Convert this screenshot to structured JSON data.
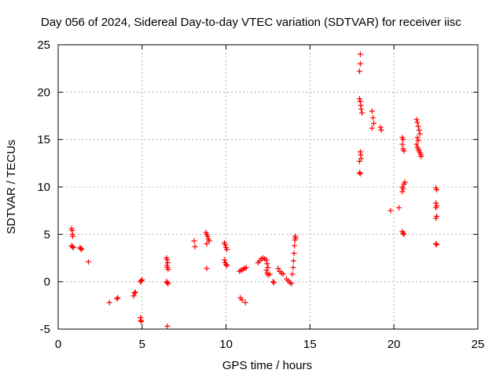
{
  "chart_data": {
    "type": "scatter",
    "title": "Day 056 of 2024, Sidereal Day-to-day VTEC variation (SDTVAR) for receiver iisc",
    "xlabel": "GPS time / hours",
    "ylabel": "SDTVAR / TECUs",
    "xlim": [
      0,
      25
    ],
    "ylim": [
      -5,
      25
    ],
    "xticks": [
      "0",
      "5",
      "10",
      "15",
      "20",
      "25"
    ],
    "yticks": [
      "-5",
      "0",
      "5",
      "10",
      "15",
      "20",
      "25"
    ],
    "grid": true,
    "marker": "+",
    "color": "#ff0000",
    "series": [
      {
        "name": "SDTVAR",
        "points": [
          [
            0.8,
            5.6
          ],
          [
            0.83,
            5.4
          ],
          [
            0.85,
            5.0
          ],
          [
            0.87,
            4.8
          ],
          [
            0.8,
            3.8
          ],
          [
            0.85,
            3.7
          ],
          [
            0.9,
            3.6
          ],
          [
            1.3,
            3.6
          ],
          [
            1.35,
            3.5
          ],
          [
            1.4,
            3.4
          ],
          [
            1.8,
            2.1
          ],
          [
            3.05,
            -2.2
          ],
          [
            3.5,
            -1.8
          ],
          [
            3.55,
            -1.7
          ],
          [
            4.5,
            -1.5
          ],
          [
            4.55,
            -1.2
          ],
          [
            4.6,
            -1.1
          ],
          [
            4.9,
            -3.8
          ],
          [
            4.92,
            -4.1
          ],
          [
            4.95,
            -4.2
          ],
          [
            4.9,
            0.0
          ],
          [
            4.95,
            0.1
          ],
          [
            5.0,
            0.2
          ],
          [
            6.45,
            2.5
          ],
          [
            6.5,
            2.3
          ],
          [
            6.52,
            2.0
          ],
          [
            6.48,
            1.7
          ],
          [
            6.5,
            1.5
          ],
          [
            6.55,
            1.3
          ],
          [
            6.45,
            0.0
          ],
          [
            6.5,
            -0.1
          ],
          [
            6.55,
            -0.2
          ],
          [
            6.5,
            -4.7
          ],
          [
            8.1,
            4.3
          ],
          [
            8.15,
            3.7
          ],
          [
            8.8,
            5.2
          ],
          [
            8.85,
            5.0
          ],
          [
            8.9,
            4.8
          ],
          [
            8.95,
            4.5
          ],
          [
            9.0,
            4.3
          ],
          [
            8.85,
            4.0
          ],
          [
            8.85,
            1.4
          ],
          [
            9.9,
            4.1
          ],
          [
            9.95,
            3.9
          ],
          [
            10.0,
            3.6
          ],
          [
            10.05,
            3.4
          ],
          [
            9.9,
            2.3
          ],
          [
            9.95,
            2.0
          ],
          [
            10.0,
            1.8
          ],
          [
            10.05,
            1.7
          ],
          [
            10.8,
            1.1
          ],
          [
            10.9,
            1.2
          ],
          [
            11.0,
            1.3
          ],
          [
            11.1,
            1.4
          ],
          [
            11.2,
            1.5
          ],
          [
            10.85,
            -1.7
          ],
          [
            10.95,
            -1.9
          ],
          [
            11.15,
            -2.2
          ],
          [
            11.9,
            2.0
          ],
          [
            12.0,
            2.2
          ],
          [
            12.1,
            2.4
          ],
          [
            12.2,
            2.5
          ],
          [
            12.3,
            2.4
          ],
          [
            12.4,
            2.3
          ],
          [
            12.45,
            1.9
          ],
          [
            12.5,
            1.5
          ],
          [
            12.4,
            1.2
          ],
          [
            12.45,
            0.9
          ],
          [
            12.5,
            0.7
          ],
          [
            12.6,
            0.8
          ],
          [
            12.8,
            0.0
          ],
          [
            12.85,
            -0.1
          ],
          [
            13.1,
            1.4
          ],
          [
            13.2,
            1.1
          ],
          [
            13.3,
            0.9
          ],
          [
            13.4,
            0.8
          ],
          [
            13.6,
            0.3
          ],
          [
            13.7,
            0.1
          ],
          [
            13.8,
            -0.1
          ],
          [
            13.9,
            -0.2
          ],
          [
            13.95,
            0.8
          ],
          [
            14.0,
            1.5
          ],
          [
            14.02,
            2.2
          ],
          [
            14.05,
            3.0
          ],
          [
            14.07,
            3.8
          ],
          [
            14.1,
            4.4
          ],
          [
            14.12,
            4.8
          ],
          [
            14.15,
            4.6
          ],
          [
            18.0,
            24.0
          ],
          [
            18.0,
            23.0
          ],
          [
            17.95,
            22.2
          ],
          [
            17.95,
            19.3
          ],
          [
            18.0,
            19.0
          ],
          [
            18.02,
            18.6
          ],
          [
            18.05,
            18.2
          ],
          [
            18.1,
            17.8
          ],
          [
            18.0,
            13.7
          ],
          [
            18.02,
            13.4
          ],
          [
            18.05,
            13.0
          ],
          [
            17.95,
            12.7
          ],
          [
            17.95,
            11.5
          ],
          [
            18.0,
            11.4
          ],
          [
            18.7,
            18.0
          ],
          [
            18.75,
            17.3
          ],
          [
            18.8,
            16.7
          ],
          [
            18.7,
            16.2
          ],
          [
            19.2,
            16.3
          ],
          [
            19.25,
            16.0
          ],
          [
            19.8,
            7.5
          ],
          [
            20.3,
            7.8
          ],
          [
            20.5,
            15.2
          ],
          [
            20.55,
            15.0
          ],
          [
            20.5,
            14.5
          ],
          [
            20.55,
            14.0
          ],
          [
            20.6,
            13.8
          ],
          [
            20.5,
            10.0
          ],
          [
            20.55,
            9.8
          ],
          [
            20.5,
            9.5
          ],
          [
            20.6,
            10.3
          ],
          [
            20.65,
            10.5
          ],
          [
            20.5,
            5.3
          ],
          [
            20.55,
            5.1
          ],
          [
            20.6,
            5.0
          ],
          [
            21.35,
            17.1
          ],
          [
            21.4,
            16.8
          ],
          [
            21.45,
            16.4
          ],
          [
            21.5,
            16.0
          ],
          [
            21.55,
            15.6
          ],
          [
            21.4,
            15.2
          ],
          [
            21.45,
            14.9
          ],
          [
            21.35,
            14.5
          ],
          [
            21.4,
            14.2
          ],
          [
            21.45,
            14.0
          ],
          [
            21.5,
            13.8
          ],
          [
            21.55,
            13.6
          ],
          [
            21.6,
            13.4
          ],
          [
            21.62,
            13.2
          ],
          [
            22.5,
            9.9
          ],
          [
            22.55,
            9.7
          ],
          [
            22.5,
            8.3
          ],
          [
            22.55,
            8.0
          ],
          [
            22.5,
            7.8
          ],
          [
            22.55,
            6.9
          ],
          [
            22.5,
            6.7
          ],
          [
            22.5,
            4.0
          ],
          [
            22.55,
            3.9
          ]
        ]
      }
    ]
  }
}
